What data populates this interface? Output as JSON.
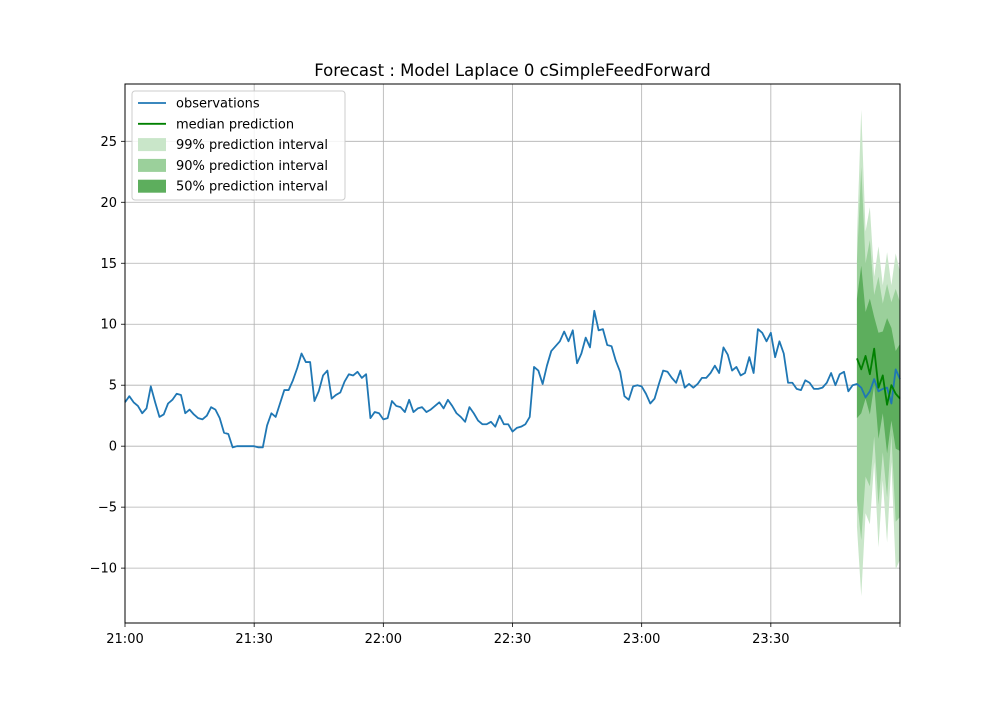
{
  "chart_data": {
    "type": "line",
    "title": "Forecast : Model Laplace 0 cSimpleFeedForward",
    "xlabel": "",
    "ylabel": "",
    "x_start": "21:00",
    "x_interval_minutes": 1,
    "x_tick_labels": [
      "21:00",
      "21:30",
      "22:00",
      "22:30",
      "23:00",
      "23:30"
    ],
    "xlim": [
      "21:00",
      "00:00"
    ],
    "y_ticks": [
      -10,
      -5,
      0,
      5,
      10,
      15,
      20,
      25
    ],
    "y_tick_labels": [
      "−10",
      "−5",
      "0",
      "5",
      "10",
      "15",
      "20",
      "25"
    ],
    "ylim": [
      -14.5,
      29.7
    ],
    "grid": true,
    "legend_position": "top-left",
    "colors": {
      "observations": "#1f77b4",
      "median": "#008000",
      "interval_99": "#c9e6c9",
      "interval_90": "#9bd09b",
      "interval_50": "#5dae5d"
    },
    "legend": [
      {
        "label": "observations",
        "kind": "line",
        "series": "observations"
      },
      {
        "label": "median prediction",
        "kind": "line",
        "series": "median"
      },
      {
        "label": "99% prediction interval",
        "kind": "patch",
        "series": "interval_99"
      },
      {
        "label": "90% prediction interval",
        "kind": "patch",
        "series": "interval_90"
      },
      {
        "label": "50% prediction interval",
        "kind": "patch",
        "series": "interval_50"
      }
    ],
    "series": [
      {
        "name": "observations",
        "values": [
          3.6,
          4.1,
          3.6,
          3.3,
          2.7,
          3.1,
          4.9,
          3.6,
          2.4,
          2.6,
          3.5,
          3.8,
          4.3,
          4.2,
          2.7,
          3.0,
          2.6,
          2.3,
          2.2,
          2.5,
          3.2,
          3.0,
          2.3,
          1.1,
          1.0,
          -0.1,
          0.0,
          0.0,
          0.0,
          0.0,
          0.0,
          -0.1,
          -0.1,
          1.7,
          2.7,
          2.4,
          3.5,
          4.6,
          4.6,
          5.4,
          6.4,
          7.6,
          6.9,
          6.9,
          3.7,
          4.5,
          5.8,
          6.2,
          3.9,
          4.2,
          4.4,
          5.3,
          5.9,
          5.8,
          6.1,
          5.6,
          5.9,
          2.3,
          2.8,
          2.7,
          2.2,
          2.3,
          3.7,
          3.3,
          3.2,
          2.8,
          3.8,
          2.8,
          3.1,
          3.2,
          2.8,
          3.0,
          3.3,
          3.6,
          3.1,
          3.8,
          3.3,
          2.7,
          2.4,
          2.0,
          3.2,
          2.7,
          2.1,
          1.8,
          1.8,
          2.0,
          1.6,
          2.5,
          1.8,
          1.8,
          1.2,
          1.5,
          1.6,
          1.8,
          2.4,
          6.5,
          6.2,
          5.1,
          6.6,
          7.8,
          8.2,
          8.6,
          9.4,
          8.6,
          9.5,
          6.8,
          7.6,
          8.9,
          8.1,
          11.1,
          9.5,
          9.6,
          8.3,
          8.2,
          7.0,
          6.1,
          4.1,
          3.8,
          4.9,
          5.0,
          4.9,
          4.3,
          3.5,
          3.9,
          5.1,
          6.2,
          6.1,
          5.6,
          5.2,
          6.2,
          4.8,
          5.1,
          4.8,
          5.1,
          5.6,
          5.6,
          6.0,
          6.6,
          6.0,
          8.1,
          7.5,
          6.2,
          6.5,
          5.8,
          6.0,
          7.3,
          6.0,
          9.6,
          9.3,
          8.6,
          9.3,
          7.3,
          8.6,
          7.6,
          5.2,
          5.2,
          4.7,
          4.6,
          5.4,
          5.2,
          4.7,
          4.7,
          4.8,
          5.2,
          6.0,
          5.0,
          5.9,
          6.1,
          4.5,
          5.0,
          5.1,
          4.8,
          4.0,
          4.5,
          5.5,
          4.5,
          4.7,
          4.8,
          3.5,
          6.3,
          5.5
        ]
      },
      {
        "name": "median",
        "x_start": "23:50",
        "values": [
          7.2,
          6.3,
          7.4,
          5.9,
          8.0,
          4.8,
          5.8,
          3.4,
          5.0,
          4.3,
          3.9
        ]
      },
      {
        "name": "interval_99",
        "x_start": "23:50",
        "lower": [
          -6.6,
          -12.3,
          -5.5,
          -6.4,
          -1.3,
          -8.3,
          -2.8,
          -7.9,
          -1.3,
          -10.1,
          -9.3
        ],
        "upper": [
          17.1,
          27.6,
          17.6,
          19.6,
          13.9,
          16.4,
          13.2,
          15.9,
          13.2,
          15.8,
          14.3
        ]
      },
      {
        "name": "interval_90",
        "x_start": "23:50",
        "lower": [
          -4.4,
          -7.7,
          -2.5,
          -3.3,
          0.8,
          -4.8,
          -0.5,
          -4.2,
          0.9,
          -6.2,
          -5.8
        ],
        "upper": [
          15.2,
          22.9,
          15.0,
          16.9,
          12.4,
          13.9,
          11.7,
          13.3,
          11.8,
          12.9,
          11.8
        ]
      },
      {
        "name": "interval_50",
        "x_start": "23:50",
        "lower": [
          2.3,
          2.7,
          3.9,
          2.6,
          5.0,
          0.6,
          2.7,
          -0.6,
          2.1,
          -0.2,
          -0.4
        ],
        "upper": [
          12.1,
          14.8,
          11.0,
          12.1,
          10.6,
          9.3,
          9.4,
          10.5,
          9.7,
          7.8,
          8.4
        ]
      }
    ]
  }
}
